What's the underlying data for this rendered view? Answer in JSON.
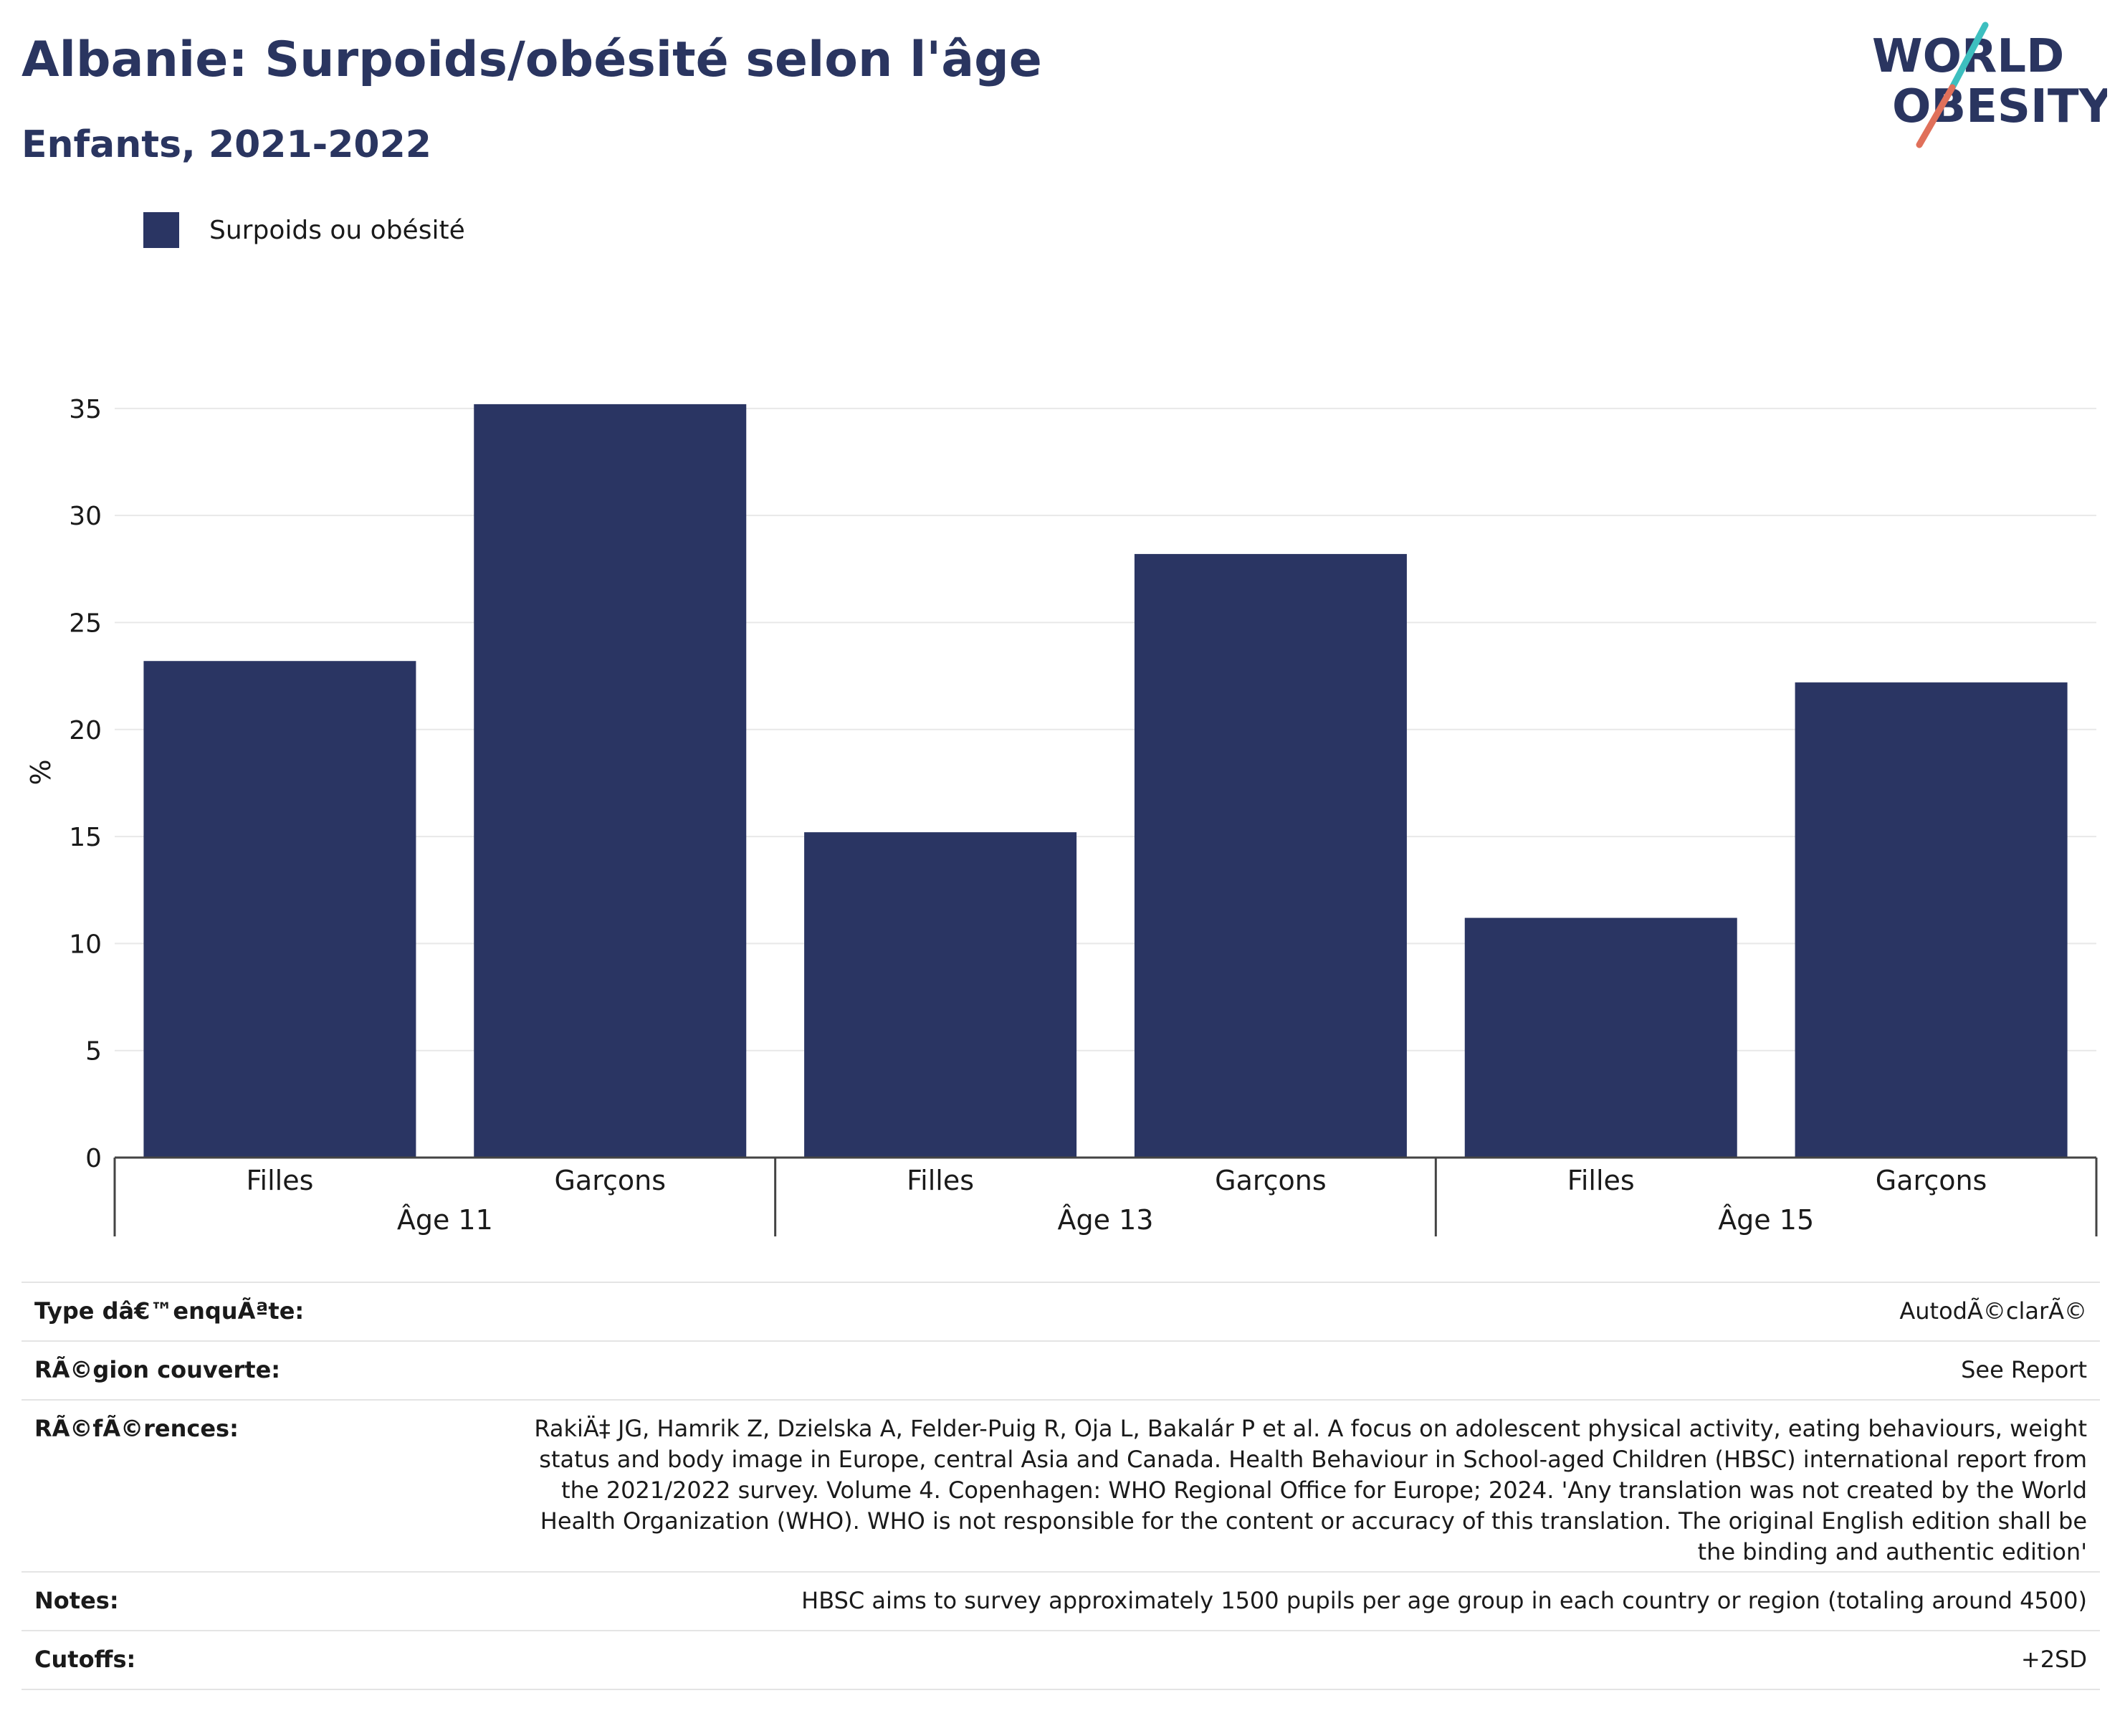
{
  "header": {
    "title": "Albanie: Surpoids/obésité selon l'âge",
    "subtitle": "Enfants, 2021-2022"
  },
  "logo": {
    "line1": "WORLD",
    "line2": "OBESITY",
    "colors": {
      "text": "#2a3560",
      "slash_top": "#3dbfbf",
      "slash_bottom": "#e0705a"
    }
  },
  "legend": {
    "label": "Surpoids ou obésité",
    "color": "#2a3563"
  },
  "chart_data": {
    "type": "bar",
    "ylabel": "%",
    "ylim": [
      0,
      35
    ],
    "yticks": [
      0,
      5,
      10,
      15,
      20,
      25,
      30,
      35
    ],
    "grid": true,
    "legend_position": "top-left",
    "groups": [
      "Âge 11",
      "Âge 13",
      "Âge 15"
    ],
    "categories": [
      "Filles",
      "Garçons",
      "Filles",
      "Garçons",
      "Filles",
      "Garçons"
    ],
    "series": [
      {
        "name": "Surpoids ou obésité",
        "color": "#2a3563",
        "values": [
          23.2,
          35.2,
          15.2,
          28.2,
          11.2,
          22.2
        ]
      }
    ]
  },
  "meta": [
    {
      "key": "Type dâ€™enquÃªte:",
      "value": "AutodÃ©clarÃ©"
    },
    {
      "key": "RÃ©gion couverte:",
      "value": "See Report"
    },
    {
      "key": "RÃ©fÃ©rences:",
      "value": "RakiÄ‡ JG, Hamrik Z, Dzielska A, Felder-Puig R, Oja L, Bakalár P et al. A focus on adolescent physical activity, eating behaviours, weight status and body image in Europe, central Asia and Canada. Health Behaviour in School-aged Children (HBSC) international report from the 2021/2022 survey. Volume 4. Copenhagen: WHO Regional Office for Europe; 2024. 'Any translation was not created by the World Health Organization (WHO). WHO is not responsible for the content or accuracy of this translation. The original English edition shall be the binding and authentic edition'"
    },
    {
      "key": "Notes:",
      "value": "HBSC aims to survey approximately 1500 pupils per age group in each country or region (totaling around 4500)"
    },
    {
      "key": "Cutoffs:",
      "value": "+2SD"
    }
  ]
}
